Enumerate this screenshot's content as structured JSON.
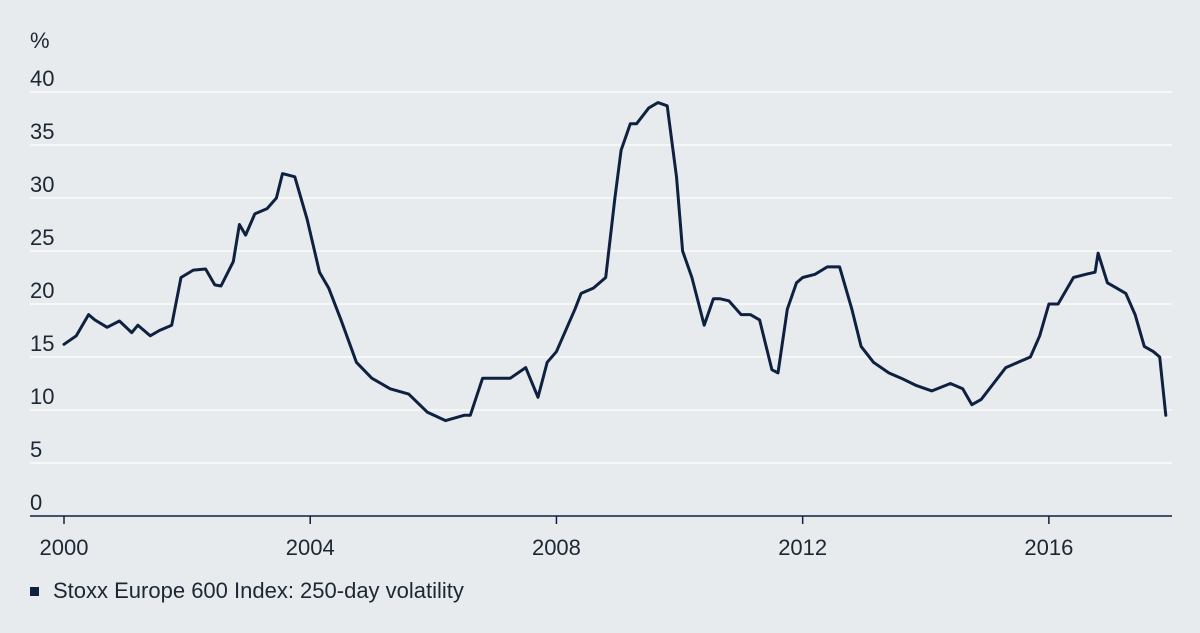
{
  "chart_data": {
    "type": "line",
    "y_unit": "%",
    "xlim": [
      2000,
      2018
    ],
    "ylim": [
      0,
      40
    ],
    "x_ticks": [
      "2000",
      "2004",
      "2008",
      "2012",
      "2016"
    ],
    "y_ticks": [
      "0",
      "5",
      "10",
      "15",
      "20",
      "25",
      "30",
      "35",
      "40"
    ],
    "grid": "horizontal",
    "legend_position": "bottom-left",
    "series": [
      {
        "name": "Stoxx Europe 600 Index: 250-day volatility",
        "color": "#0e2140",
        "x": [
          2000.0,
          2000.2,
          2000.4,
          2000.5,
          2000.7,
          2000.9,
          2001.1,
          2001.2,
          2001.4,
          2001.55,
          2001.75,
          2001.9,
          2002.1,
          2002.3,
          2002.45,
          2002.55,
          2002.75,
          2002.85,
          2002.95,
          2003.1,
          2003.3,
          2003.45,
          2003.55,
          2003.75,
          2003.95,
          2004.15,
          2004.3,
          2004.5,
          2004.75,
          2005.0,
          2005.3,
          2005.6,
          2005.9,
          2006.2,
          2006.5,
          2006.6,
          2006.8,
          2007.0,
          2007.25,
          2007.5,
          2007.7,
          2007.85,
          2008.0,
          2008.3,
          2008.4,
          2008.6,
          2008.8,
          2008.95,
          2009.05,
          2009.2,
          2009.3,
          2009.5,
          2009.65,
          2009.8,
          2009.95,
          2010.05,
          2010.2,
          2010.4,
          2010.55,
          2010.65,
          2010.8,
          2011.0,
          2011.15,
          2011.3,
          2011.5,
          2011.6,
          2011.75,
          2011.9,
          2012.0,
          2012.2,
          2012.4,
          2012.6,
          2012.8,
          2012.95,
          2013.15,
          2013.4,
          2013.6,
          2013.85,
          2014.1,
          2014.4,
          2014.6,
          2014.75,
          2014.9,
          2015.1,
          2015.3,
          2015.5,
          2015.7,
          2015.85,
          2016.0,
          2016.15,
          2016.4,
          2016.6,
          2016.75,
          2016.8,
          2016.95,
          2017.1,
          2017.25,
          2017.4,
          2017.55,
          2017.7,
          2017.8,
          2017.9
        ],
        "y": [
          16.2,
          17.0,
          19.0,
          18.5,
          17.8,
          18.4,
          17.3,
          18.0,
          17.0,
          17.5,
          18.0,
          22.5,
          23.2,
          23.3,
          21.8,
          21.7,
          24.0,
          27.5,
          26.5,
          28.5,
          29.0,
          30.0,
          32.3,
          32.0,
          28.0,
          23.0,
          21.5,
          18.5,
          14.5,
          13.0,
          12.0,
          11.5,
          9.8,
          9.0,
          9.5,
          9.5,
          13.0,
          13.0,
          13.0,
          14.0,
          11.2,
          14.5,
          15.5,
          19.5,
          21.0,
          21.5,
          22.5,
          30.0,
          34.5,
          37.0,
          37.0,
          38.5,
          39.0,
          38.7,
          32.0,
          25.0,
          22.5,
          18.0,
          20.5,
          20.5,
          20.3,
          19.0,
          19.0,
          18.5,
          13.8,
          13.5,
          19.5,
          22.0,
          22.5,
          22.8,
          23.5,
          23.5,
          19.5,
          16.0,
          14.5,
          13.5,
          13.0,
          12.3,
          11.8,
          12.5,
          12.0,
          10.5,
          11.0,
          12.5,
          14.0,
          14.5,
          15.0,
          17.0,
          20.0,
          20.0,
          22.5,
          22.8,
          23.0,
          24.8,
          22.0,
          21.5,
          21.0,
          19.0,
          16.0,
          15.5,
          15.0,
          9.5
        ]
      }
    ]
  }
}
